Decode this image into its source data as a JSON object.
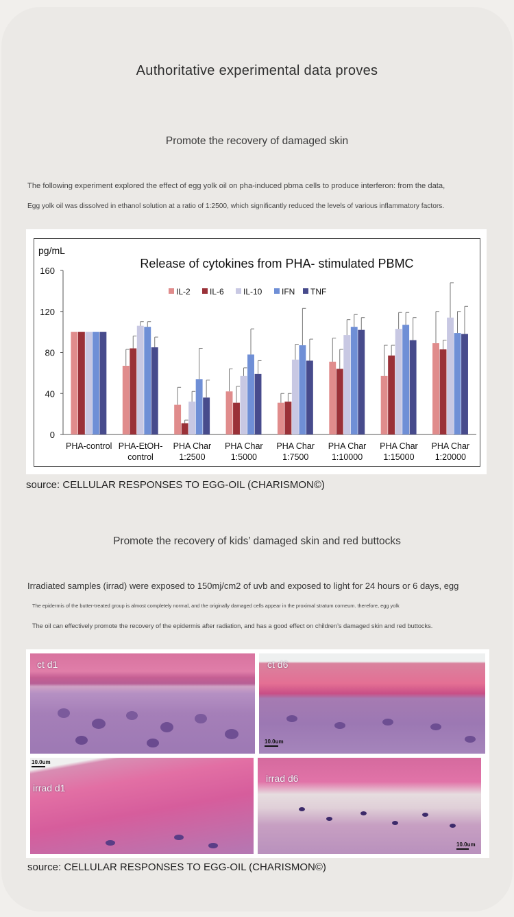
{
  "header": {
    "title": "Authoritative experimental data proves"
  },
  "section1": {
    "heading": "Promote the recovery of damaged skin",
    "line1": "The following experiment explored the effect of egg yolk oil on pha-induced pbma cells to produce interferon: from the data,",
    "line2": "Egg yolk oil was dissolved in ethanol solution at a ratio of 1:2500, which significantly reduced the levels of various inflammatory factors.",
    "source": "source: CELLULAR RESPONSES TO EGG-OIL (CHARISMON©)"
  },
  "chart_data": {
    "type": "bar",
    "title": "Release of cytokines from PHA- stimulated PBMC",
    "ylabel": "pg/mL",
    "ylim": [
      0,
      160
    ],
    "yticks": [
      0,
      40,
      80,
      120,
      160
    ],
    "grid": false,
    "legend_position": "top-left inside plot",
    "categories": [
      [
        "PHA-control"
      ],
      [
        "PHA-EtOH-",
        "control"
      ],
      [
        "PHA Char",
        "1:2500"
      ],
      [
        "PHA Char",
        "1:5000"
      ],
      [
        "PHA Char",
        "1:7500"
      ],
      [
        "PHA Char",
        "1:10000"
      ],
      [
        "PHA Char",
        "1:15000"
      ],
      [
        "PHA Char",
        "1:20000"
      ]
    ],
    "series": [
      {
        "name": "IL-2",
        "color": "#e08c8c",
        "values": [
          100,
          67,
          29,
          42,
          31,
          71,
          57,
          89
        ],
        "errors": [
          0,
          16,
          17,
          22,
          9,
          23,
          30,
          31
        ]
      },
      {
        "name": "IL-6",
        "color": "#9a3138",
        "values": [
          100,
          84,
          11,
          31,
          32,
          64,
          77,
          83
        ],
        "errors": [
          0,
          12,
          3,
          16,
          8,
          19,
          10,
          9
        ]
      },
      {
        "name": "IL-10",
        "color": "#c8c8e3",
        "values": [
          100,
          106,
          32,
          57,
          73,
          97,
          103,
          114
        ],
        "errors": [
          0,
          4,
          10,
          8,
          15,
          15,
          16,
          34
        ]
      },
      {
        "name": "IFN",
        "color": "#6f8fd6",
        "values": [
          100,
          105,
          54,
          78,
          87,
          105,
          107,
          99
        ],
        "errors": [
          0,
          5,
          30,
          25,
          36,
          12,
          12,
          21
        ]
      },
      {
        "name": "TNF",
        "color": "#474b8c",
        "values": [
          100,
          85,
          36,
          59,
          72,
          102,
          92,
          98
        ],
        "errors": [
          0,
          10,
          17,
          13,
          21,
          12,
          22,
          27
        ]
      }
    ]
  },
  "section2": {
    "heading": "Promote the recovery of kids’ damaged skin and red buttocks",
    "line1": "Irradiated samples (irrad) were exposed to 150mj/cm2 of uvb and exposed to light for 24 hours or 6 days, egg",
    "line2": "The epidermis of the butter-treated group is almost completely normal, and the originally damaged cells appear in the proximal stratum corneum. therefore, egg yolk",
    "line3": "The oil can effectively promote the recovery of the epidermis after radiation, and has a good effect on children’s damaged skin and red buttocks.",
    "source": "source: CELLULAR RESPONSES TO EGG-OIL (CHARISMON©)"
  },
  "histology": {
    "panels": [
      {
        "label": "ct d1",
        "scale": ""
      },
      {
        "label": "ct d6",
        "scale": "10.0um"
      },
      {
        "label": "irrad  d1",
        "scale": "10.0um"
      },
      {
        "label": "irrad d6",
        "scale": "10.0um"
      }
    ]
  }
}
